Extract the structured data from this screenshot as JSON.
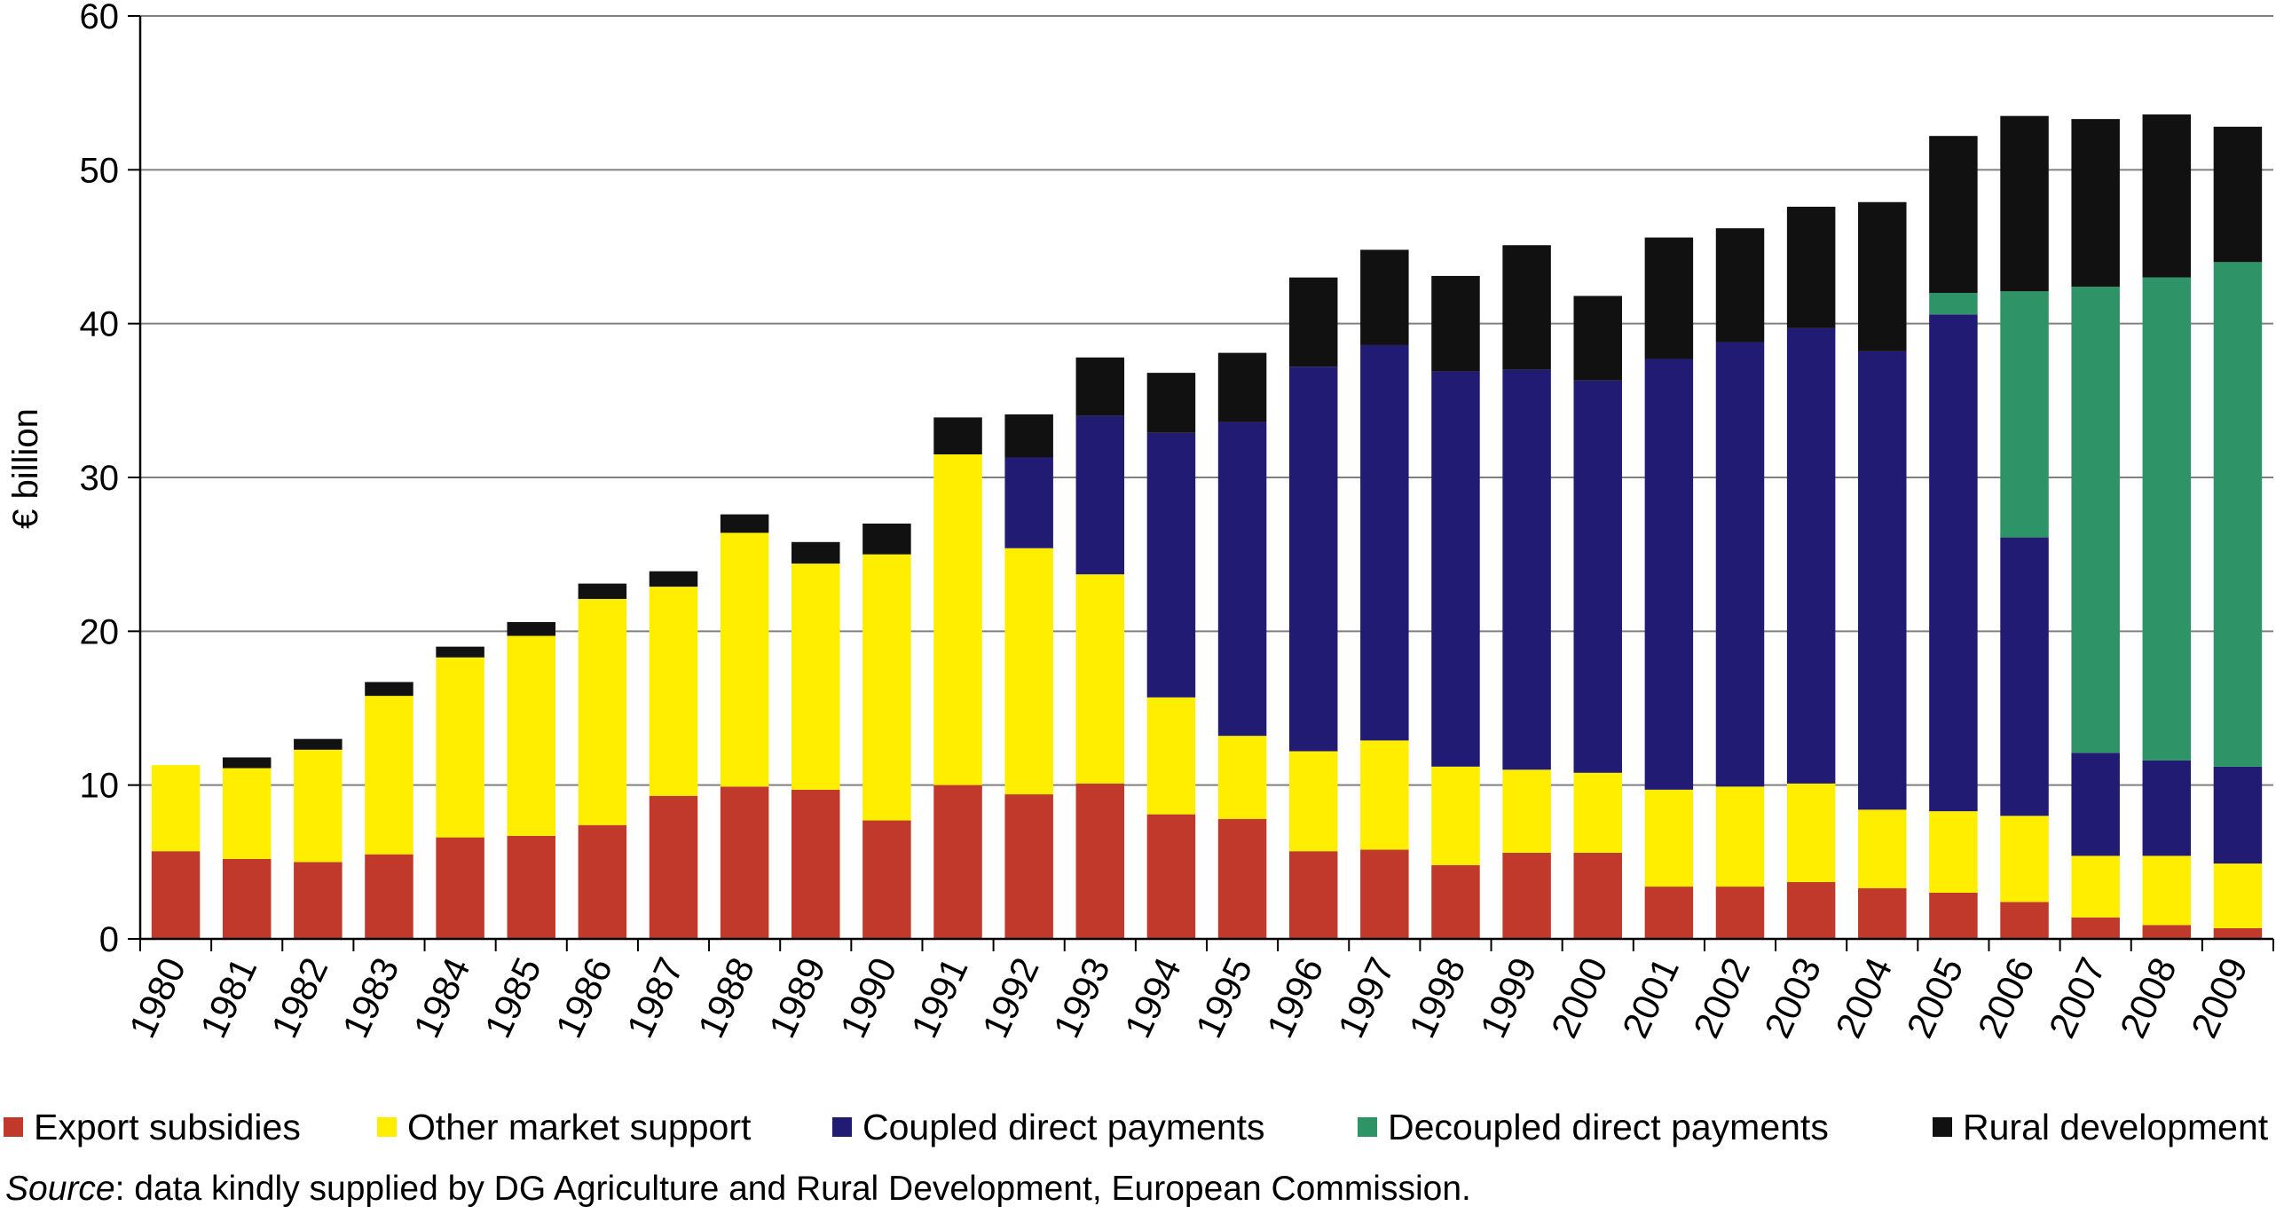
{
  "chart_data": {
    "type": "bar",
    "stacked": true,
    "title": "",
    "xlabel": "",
    "ylabel": "€ billion",
    "ylim": [
      0,
      60
    ],
    "yticks": [
      0,
      10,
      20,
      30,
      40,
      50,
      60
    ],
    "grid": true,
    "legend_position": "bottom",
    "categories": [
      "1980",
      "1981",
      "1982",
      "1983",
      "1984",
      "1985",
      "1986",
      "1987",
      "1988",
      "1989",
      "1990",
      "1991",
      "1992",
      "1993",
      "1994",
      "1995",
      "1996",
      "1997",
      "1998",
      "1999",
      "2000",
      "2001",
      "2002",
      "2003",
      "2004",
      "2005",
      "2006",
      "2007",
      "2008",
      "2009"
    ],
    "series": [
      {
        "name": "Export subsidies",
        "color": "#c0392b",
        "values": [
          5.7,
          5.2,
          5.0,
          5.5,
          6.6,
          6.7,
          7.4,
          9.3,
          9.9,
          9.7,
          7.7,
          10.0,
          9.4,
          10.1,
          8.1,
          7.8,
          5.7,
          5.8,
          4.8,
          5.6,
          5.6,
          3.4,
          3.4,
          3.7,
          3.3,
          3.0,
          2.4,
          1.4,
          0.9,
          0.7
        ]
      },
      {
        "name": "Other market support",
        "color": "#ffee00",
        "values": [
          5.6,
          5.9,
          7.3,
          10.3,
          11.7,
          13.0,
          14.7,
          13.6,
          16.5,
          14.7,
          17.3,
          21.5,
          16.0,
          13.6,
          7.6,
          5.4,
          6.5,
          7.1,
          6.4,
          5.4,
          5.2,
          6.3,
          6.5,
          6.4,
          5.1,
          5.3,
          5.6,
          4.0,
          4.5,
          4.2
        ]
      },
      {
        "name": "Coupled direct payments",
        "color": "#221b73",
        "values": [
          0,
          0,
          0,
          0,
          0,
          0,
          0,
          0,
          0,
          0,
          0,
          0,
          5.9,
          10.3,
          17.2,
          20.4,
          25.0,
          25.7,
          25.7,
          26.0,
          25.5,
          28.0,
          28.9,
          29.6,
          29.8,
          32.3,
          18.1,
          6.7,
          6.2,
          6.3
        ]
      },
      {
        "name": "Decoupled direct payments",
        "color": "#2e9468",
        "values": [
          0,
          0,
          0,
          0,
          0,
          0,
          0,
          0,
          0,
          0,
          0,
          0,
          0,
          0,
          0,
          0,
          0,
          0,
          0,
          0,
          0,
          0,
          0,
          0,
          0,
          1.4,
          16.0,
          30.3,
          31.4,
          32.8
        ]
      },
      {
        "name": "Rural development",
        "color": "#111111",
        "values": [
          0,
          0.7,
          0.7,
          0.9,
          0.7,
          0.9,
          1.0,
          1.0,
          1.2,
          1.4,
          2.0,
          2.4,
          2.8,
          3.8,
          3.9,
          4.5,
          5.8,
          6.2,
          6.2,
          8.1,
          5.5,
          7.9,
          7.4,
          7.9,
          9.7,
          10.2,
          11.4,
          10.9,
          10.6,
          8.8
        ]
      }
    ]
  },
  "source": {
    "prefix": "Source",
    "text": ": data kindly supplied by DG Agriculture and Rural Development, European Commission."
  }
}
